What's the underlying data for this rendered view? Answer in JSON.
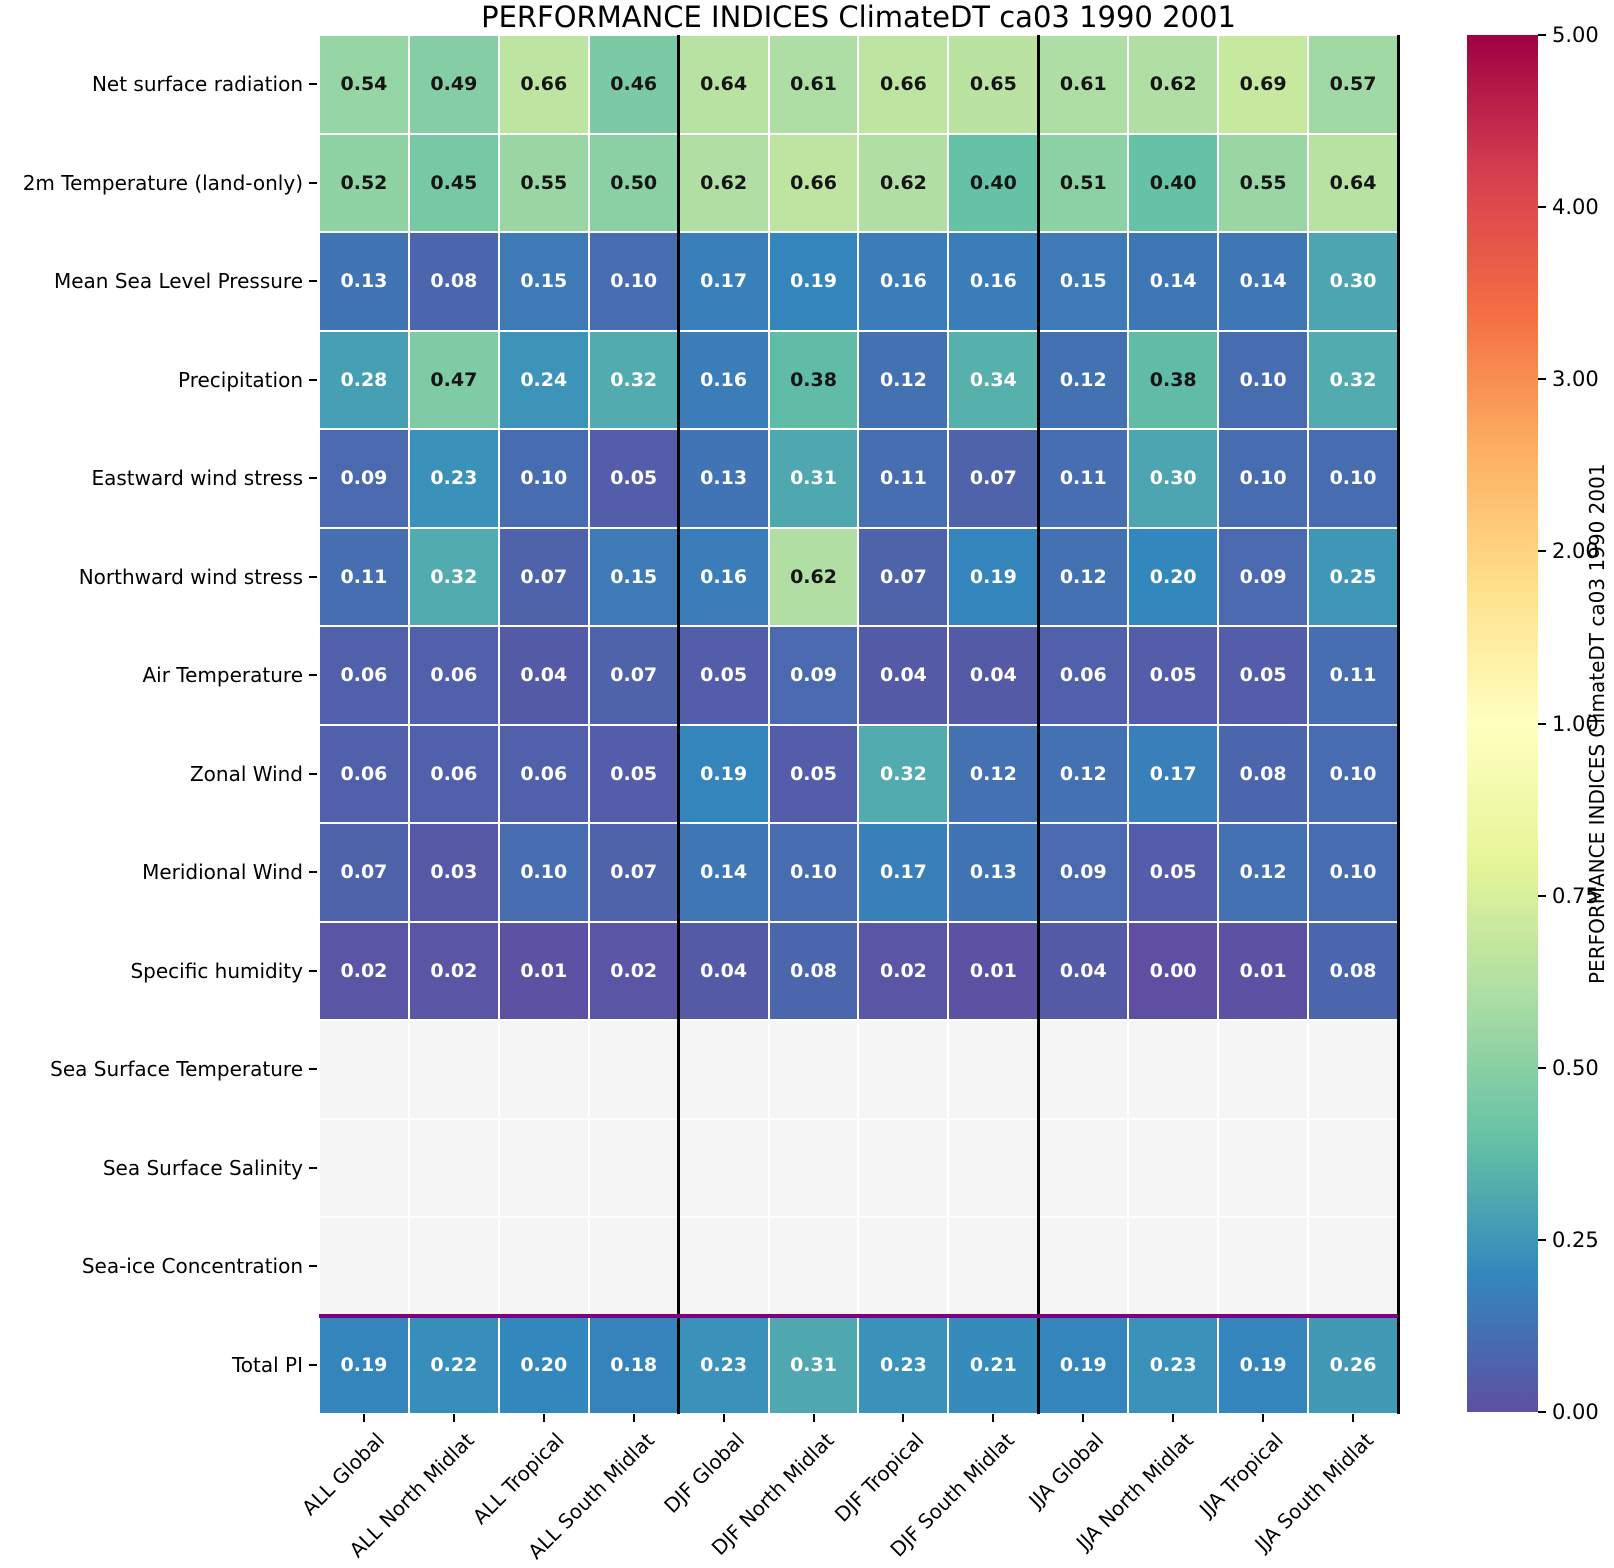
{
  "title": "PERFORMANCE INDICES ClimateDT ca03 1990 2001",
  "chart_data": {
    "type": "heatmap",
    "title": "PERFORMANCE INDICES ClimateDT ca03 1990 2001",
    "columns": [
      "ALL Global",
      "ALL North Midlat",
      "ALL Tropical",
      "ALL South Midlat",
      "DJF Global",
      "DJF North Midlat",
      "DJF Tropical",
      "DJF South Midlat",
      "JJA Global",
      "JJA North Midlat",
      "JJA Tropical",
      "JJA South Midlat"
    ],
    "rows": [
      "Net surface radiation",
      "2m Temperature (land-only)",
      "Mean Sea Level Pressure",
      "Precipitation",
      "Eastward wind stress",
      "Northward wind stress",
      "Air Temperature",
      "Zonal Wind",
      "Meridional Wind",
      "Specific humidity",
      "Sea Surface Temperature",
      "Sea Surface Salinity",
      "Sea-ice Concentration",
      "Total PI"
    ],
    "values": [
      [
        0.54,
        0.49,
        0.66,
        0.46,
        0.64,
        0.61,
        0.66,
        0.65,
        0.61,
        0.62,
        0.69,
        0.57
      ],
      [
        0.52,
        0.45,
        0.55,
        0.5,
        0.62,
        0.66,
        0.62,
        0.4,
        0.51,
        0.4,
        0.55,
        0.64
      ],
      [
        0.13,
        0.08,
        0.15,
        0.1,
        0.17,
        0.19,
        0.16,
        0.16,
        0.15,
        0.14,
        0.14,
        0.3
      ],
      [
        0.28,
        0.47,
        0.24,
        0.32,
        0.16,
        0.38,
        0.12,
        0.34,
        0.12,
        0.38,
        0.1,
        0.32
      ],
      [
        0.09,
        0.23,
        0.1,
        0.05,
        0.13,
        0.31,
        0.11,
        0.07,
        0.11,
        0.3,
        0.1,
        0.1
      ],
      [
        0.11,
        0.32,
        0.07,
        0.15,
        0.16,
        0.62,
        0.07,
        0.19,
        0.12,
        0.2,
        0.09,
        0.25
      ],
      [
        0.06,
        0.06,
        0.04,
        0.07,
        0.05,
        0.09,
        0.04,
        0.04,
        0.06,
        0.05,
        0.05,
        0.11
      ],
      [
        0.06,
        0.06,
        0.06,
        0.05,
        0.19,
        0.05,
        0.32,
        0.12,
        0.12,
        0.17,
        0.08,
        0.1
      ],
      [
        0.07,
        0.03,
        0.1,
        0.07,
        0.14,
        0.1,
        0.17,
        0.13,
        0.09,
        0.05,
        0.12,
        0.1
      ],
      [
        0.02,
        0.02,
        0.01,
        0.02,
        0.04,
        0.08,
        0.02,
        0.01,
        0.04,
        0.0,
        0.01,
        0.08
      ],
      [
        null,
        null,
        null,
        null,
        null,
        null,
        null,
        null,
        null,
        null,
        null,
        null
      ],
      [
        null,
        null,
        null,
        null,
        null,
        null,
        null,
        null,
        null,
        null,
        null,
        null
      ],
      [
        null,
        null,
        null,
        null,
        null,
        null,
        null,
        null,
        null,
        null,
        null,
        null
      ],
      [
        0.19,
        0.22,
        0.2,
        0.18,
        0.23,
        0.31,
        0.23,
        0.21,
        0.19,
        0.23,
        0.19,
        0.26
      ]
    ],
    "annotation_format": "0.00",
    "colormap": {
      "name": "Spectral_r",
      "anchors": [
        "#5e4fa2",
        "#3288bd",
        "#66c2a5",
        "#abdda4",
        "#e6f598",
        "#ffffbf",
        "#fee08b",
        "#fdae61",
        "#f46d43",
        "#d53e4f",
        "#9e0142"
      ]
    },
    "norm_boundaries": [
      0,
      0.25,
      0.5,
      0.75,
      1,
      2,
      3,
      4,
      5
    ],
    "nan_color": "#f5f5f5",
    "gridline_color": "#ffffff",
    "group_separator_color": "#000000",
    "group_separators_after_columns": [
      4,
      8,
      12
    ],
    "total_row_separator": {
      "above_row": "Total PI",
      "color": "#800080"
    },
    "colorbar": {
      "label": "PERFORMANCE INDICES ClimateDT ca03 1990 2001",
      "tick_labels": [
        "0.00",
        "0.25",
        "0.50",
        "0.75",
        "1.00",
        "2.00",
        "3.00",
        "4.00",
        "5.00"
      ],
      "min": 0,
      "max": 5
    }
  }
}
